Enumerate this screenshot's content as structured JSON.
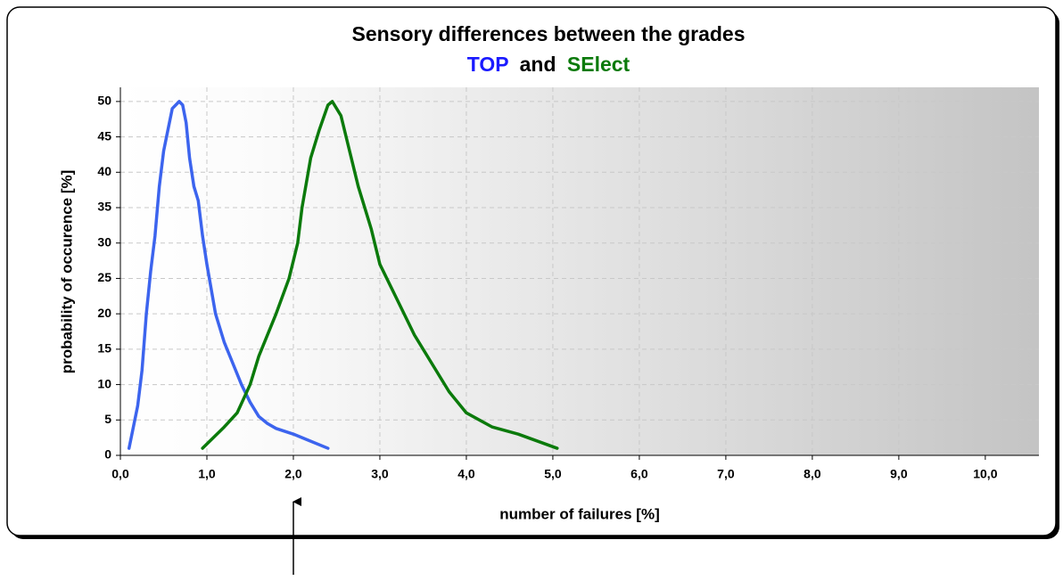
{
  "chart_data": {
    "type": "line",
    "title": "Sensory differences between the grades",
    "subtitle_connector": "and",
    "xlabel": "number of failures [%]",
    "ylabel": "probability of occurence [%]",
    "xlim": [
      0,
      10.62
    ],
    "ylim": [
      0,
      52
    ],
    "xticks": [
      {
        "value": 0,
        "label": "0,0"
      },
      {
        "value": 1,
        "label": "1,0"
      },
      {
        "value": 2,
        "label": "2,0"
      },
      {
        "value": 3,
        "label": "3,0"
      },
      {
        "value": 4,
        "label": "4,0"
      },
      {
        "value": 5,
        "label": "5,0"
      },
      {
        "value": 6,
        "label": "6,0"
      },
      {
        "value": 7,
        "label": "7,0"
      },
      {
        "value": 8,
        "label": "8,0"
      },
      {
        "value": 9,
        "label": "9,0"
      },
      {
        "value": 10,
        "label": "10,0"
      }
    ],
    "yticks": [
      0,
      5,
      10,
      15,
      20,
      25,
      30,
      35,
      40,
      45,
      50
    ],
    "grid": true,
    "series": [
      {
        "name": "TOP",
        "color": "#3c64ee",
        "x": [
          0.1,
          0.15,
          0.2,
          0.25,
          0.3,
          0.35,
          0.4,
          0.45,
          0.5,
          0.55,
          0.6,
          0.68,
          0.72,
          0.76,
          0.8,
          0.85,
          0.9,
          0.95,
          1.0,
          1.1,
          1.2,
          1.3,
          1.4,
          1.5,
          1.6,
          1.7,
          1.8,
          2.0,
          2.2,
          2.4
        ],
        "values": [
          1,
          4,
          7,
          12,
          20,
          26,
          31,
          38,
          43,
          46,
          49,
          50,
          49.5,
          47,
          42,
          38,
          36,
          31,
          27,
          20,
          16,
          13,
          10,
          7.5,
          5.5,
          4.5,
          3.8,
          3,
          2,
          1
        ]
      },
      {
        "name": "SElect",
        "color": "#0b7a0b",
        "x": [
          0.95,
          1.2,
          1.35,
          1.5,
          1.6,
          1.8,
          1.95,
          2.05,
          2.1,
          2.2,
          2.3,
          2.4,
          2.45,
          2.55,
          2.65,
          2.75,
          2.9,
          3.0,
          3.2,
          3.4,
          3.6,
          3.8,
          4.0,
          4.3,
          4.6,
          5.05
        ],
        "values": [
          1,
          4,
          6,
          10,
          14,
          20,
          25,
          30,
          35,
          42,
          46,
          49.5,
          50,
          48,
          43,
          38,
          32,
          27,
          22,
          17,
          13,
          9,
          6,
          4,
          3,
          1
        ]
      }
    ]
  }
}
